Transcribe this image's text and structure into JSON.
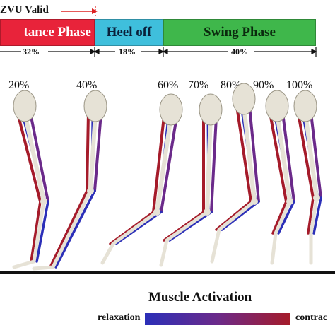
{
  "header": {
    "zvu_label": "ZVU  Valid"
  },
  "phases": [
    {
      "label": "tance Phase",
      "percent": "32%",
      "color": "#e8233a"
    },
    {
      "label": "Heel off",
      "percent": "18%",
      "color": "#3fbfdc"
    },
    {
      "label": "Swing Phase",
      "percent": "40%",
      "color": "#3fb74b"
    }
  ],
  "gait_percent_labels": [
    "20%",
    "40%",
    "60%",
    "70%",
    "80%",
    "90%",
    "100%"
  ],
  "legend": {
    "title": "Muscle Activation",
    "low_label": "relaxation",
    "high_label": "contrac",
    "colors": {
      "relaxation": "#2b2fb8",
      "contraction": "#a51b2a"
    }
  },
  "colors": {
    "bone": "#e6e2d6",
    "muscle_red": "#a51b2a",
    "muscle_blue": "#2b2fb8",
    "muscle_purple": "#6b2a8a",
    "ground": "#111111"
  }
}
